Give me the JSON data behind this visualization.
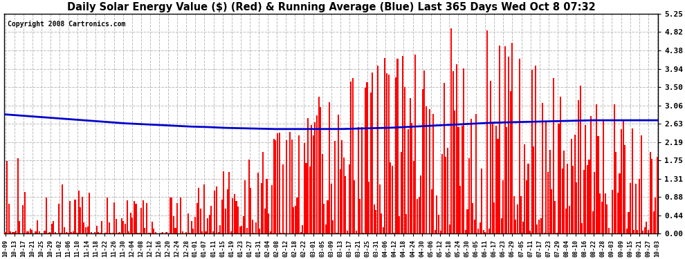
{
  "title": "Daily Solar Energy Value ($) (Red) & Running Average (Blue) Last 365 Days Wed Oct 8 07:32",
  "copyright": "Copyright 2008 Cartronics.com",
  "yticks": [
    0.0,
    0.44,
    0.88,
    1.31,
    1.75,
    2.19,
    2.63,
    3.06,
    3.5,
    3.94,
    4.38,
    4.82,
    5.25
  ],
  "ymax": 5.25,
  "ymin": 0.0,
  "bar_color": "#ff0000",
  "line_color": "#0000cc",
  "bg_color": "#ffffff",
  "grid_color": "#bbbbbb",
  "title_fontsize": 10.5,
  "avg_curve": [
    2.85,
    2.82,
    2.79,
    2.76,
    2.73,
    2.7,
    2.67,
    2.64,
    2.62,
    2.6,
    2.58,
    2.56,
    2.55,
    2.53,
    2.52,
    2.51,
    2.5,
    2.5,
    2.5,
    2.5,
    2.5,
    2.51,
    2.52,
    2.53,
    2.55,
    2.57,
    2.59,
    2.61,
    2.63,
    2.65,
    2.66,
    2.67,
    2.68,
    2.69,
    2.7,
    2.71,
    2.71,
    2.71,
    2.71,
    2.71
  ],
  "x_labels": [
    "10-09",
    "10-13",
    "10-17",
    "10-21",
    "10-25",
    "10-29",
    "11-02",
    "11-06",
    "11-10",
    "11-14",
    "11-18",
    "11-22",
    "11-26",
    "11-30",
    "12-04",
    "12-08",
    "12-12",
    "12-16",
    "12-20",
    "12-24",
    "12-28",
    "01-01",
    "01-07",
    "01-11",
    "01-15",
    "01-19",
    "01-23",
    "01-27",
    "01-31",
    "02-04",
    "02-08",
    "02-12",
    "02-18",
    "02-22",
    "03-01",
    "03-05",
    "03-09",
    "03-13",
    "03-17",
    "03-21",
    "03-25",
    "03-31",
    "04-06",
    "04-12",
    "04-18",
    "04-24",
    "04-30",
    "05-06",
    "05-12",
    "05-18",
    "05-24",
    "05-30",
    "06-05",
    "06-11",
    "06-17",
    "06-23",
    "06-29",
    "07-05",
    "07-11",
    "07-17",
    "07-23",
    "07-29",
    "08-04",
    "08-10",
    "08-16",
    "08-22",
    "08-28",
    "09-03",
    "09-09",
    "09-15",
    "09-21",
    "09-27",
    "10-03"
  ]
}
